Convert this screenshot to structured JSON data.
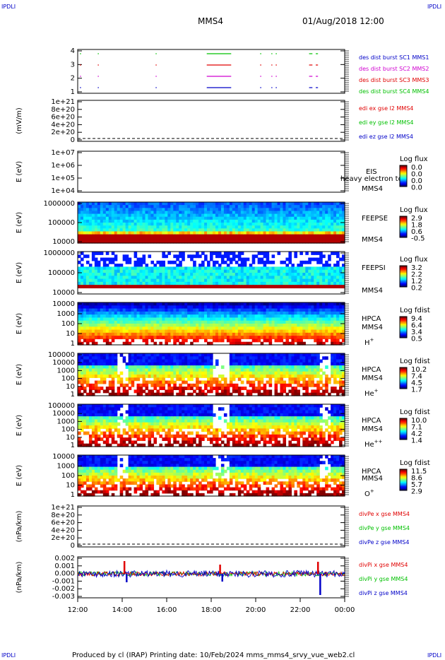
{
  "corner_left": "IPDLI",
  "corner_right": "IPDLI",
  "title": "MMS4",
  "date": "01/Aug/2018 12:00",
  "footer": "Produced by cl (IRAP)   Printing date: 10/Feb/2024   mms_mms4_srvy_vue_web2.cl",
  "colors": {
    "blue": "#0000c8",
    "red": "#e00000",
    "magenta": "#d000d0",
    "green": "#00c000",
    "black": "#000000"
  },
  "chart_data": [
    {
      "type": "line",
      "id": "burst",
      "ylim": [
        0.5,
        4.5
      ],
      "yticks": [
        "1",
        "2",
        "3",
        "4"
      ],
      "xlim": [
        12,
        24
      ],
      "legend": [
        {
          "text": "des dist burst SC1 MMS1",
          "color": "#0000c8"
        },
        {
          "text": "des dist burst SC2 MMS2",
          "color": "#d000d0"
        },
        {
          "text": "des dist burst SC3 MMS3",
          "color": "#e00000"
        },
        {
          "text": "des dist burst SC4 MMS4",
          "color": "#00c000"
        }
      ],
      "intervals": [
        [
          12.1,
          12.15
        ],
        [
          12.9,
          12.95
        ],
        [
          15.5,
          15.55
        ],
        [
          17.8,
          18.9
        ],
        [
          20.2,
          20.25
        ],
        [
          20.7,
          20.75
        ],
        [
          20.9,
          20.95
        ],
        [
          22.4,
          22.55
        ],
        [
          22.7,
          22.8
        ]
      ]
    },
    {
      "type": "line",
      "id": "edi",
      "ylabel": "(mV/m)",
      "yticks": [
        "0",
        "2e+20",
        "4e+20",
        "6e+20",
        "8e+20",
        "1e+21"
      ],
      "legend": [
        {
          "text": "edi ex gse l2 MMS4",
          "color": "#e00000"
        },
        {
          "text": "edi ey gse l2 MMS4",
          "color": "#00c000"
        },
        {
          "text": "edi ez gse l2 MMS4",
          "color": "#0000c8"
        }
      ]
    },
    {
      "type": "heatmap",
      "id": "eis",
      "ylabel": "E (eV)",
      "yticks": [
        "1e+04",
        "1e+05",
        "1e+06",
        "1e+07"
      ],
      "labels": [
        "EIS",
        "MMS4"
      ],
      "overlay": "heavy electron to",
      "cbar_title": "Log flux",
      "cbar_ticks": [
        "0.0",
        "0.0",
        "0.0",
        "0.0"
      ],
      "empty": true
    },
    {
      "type": "heatmap",
      "id": "feepse",
      "ylabel": "E (eV)",
      "yticks": [
        "10000",
        "100000",
        "1000000"
      ],
      "labels": [
        "FEEPSE",
        "MMS4"
      ],
      "cbar_title": "Log flux",
      "cbar_ticks": [
        "2.9",
        "1.8",
        "0.6",
        "-0.5"
      ]
    },
    {
      "type": "heatmap",
      "id": "feepsi",
      "ylabel": "E (eV)",
      "yticks": [
        "10000",
        "100000",
        "1000000"
      ],
      "labels": [
        "FEEPSI",
        "MMS4"
      ],
      "cbar_title": "Log flux",
      "cbar_ticks": [
        "3.2",
        "2.2",
        "1.2",
        "0.2"
      ]
    },
    {
      "type": "heatmap",
      "id": "hpca_h",
      "ylabel": "E (eV)",
      "yticks": [
        "1",
        "10",
        "100",
        "1000",
        "10000"
      ],
      "labels": [
        "HPCA",
        "MMS4"
      ],
      "species": "H",
      "sup": "+",
      "cbar_title": "Log fdist",
      "cbar_ticks": [
        "9.4",
        "6.4",
        "3.4",
        "0.5"
      ]
    },
    {
      "type": "heatmap",
      "id": "hpca_he",
      "ylabel": "E (eV)",
      "yticks": [
        "1",
        "10",
        "100",
        "1000",
        "10000",
        "100000"
      ],
      "labels": [
        "HPCA",
        "MMS4"
      ],
      "species": "He",
      "sup": "+",
      "cbar_title": "Log fdist",
      "cbar_ticks": [
        "10.2",
        "7.4",
        "4.5",
        "1.7"
      ]
    },
    {
      "type": "heatmap",
      "id": "hpca_hepp",
      "ylabel": "E (eV)",
      "yticks": [
        "1",
        "10",
        "100",
        "1000",
        "10000",
        "100000"
      ],
      "labels": [
        "HPCA",
        "MMS4"
      ],
      "species": "He",
      "sup": "++",
      "cbar_title": "Log fdist",
      "cbar_ticks": [
        "10.0",
        "7.1",
        "4.2",
        "1.4"
      ]
    },
    {
      "type": "heatmap",
      "id": "hpca_o",
      "ylabel": "E (eV)",
      "yticks": [
        "1",
        "10",
        "100",
        "1000",
        "10000"
      ],
      "labels": [
        "HPCA",
        "MMS4"
      ],
      "species": "O",
      "sup": "+",
      "cbar_title": "Log fdist",
      "cbar_ticks": [
        "11.5",
        "8.6",
        "5.7",
        "2.9"
      ]
    },
    {
      "type": "line",
      "id": "divpe",
      "ylabel": "(nPa/km)",
      "yticks": [
        "0",
        "2e+20",
        "4e+20",
        "6e+20",
        "8e+20",
        "1e+21"
      ],
      "legend": [
        {
          "text": "divPe x gse MMS4",
          "color": "#e00000"
        },
        {
          "text": "divPe y gse MMS4",
          "color": "#00c000"
        },
        {
          "text": "divPe z gse MMS4",
          "color": "#0000c8"
        }
      ]
    },
    {
      "type": "line",
      "id": "divpi",
      "ylabel": "(nPa/km)",
      "yticks": [
        "-0.003",
        "-0.002",
        "-0.001",
        "0.000",
        "0.001",
        "0.002"
      ],
      "ylim": [
        -0.0032,
        0.0022
      ],
      "legend": [
        {
          "text": "divPi x gse MMS4",
          "color": "#e00000"
        },
        {
          "text": "divPi y gse MMS4",
          "color": "#00c000"
        },
        {
          "text": "divPi z gse MMS4",
          "color": "#0000c8"
        }
      ],
      "spikes": [
        {
          "x": 14.1,
          "y": 0.0018,
          "color": "#e00000"
        },
        {
          "x": 14.2,
          "y": -0.0012,
          "color": "#0000c8"
        },
        {
          "x": 18.4,
          "y": 0.0013,
          "color": "#e00000"
        },
        {
          "x": 18.5,
          "y": -0.0011,
          "color": "#0000c8"
        },
        {
          "x": 22.8,
          "y": 0.0017,
          "color": "#e00000"
        },
        {
          "x": 22.9,
          "y": -0.003,
          "color": "#0000c8"
        }
      ]
    }
  ],
  "xaxis": {
    "ticks": [
      "12:00",
      "14:00",
      "16:00",
      "18:00",
      "20:00",
      "22:00",
      "00:00"
    ],
    "range": [
      12,
      24
    ]
  }
}
